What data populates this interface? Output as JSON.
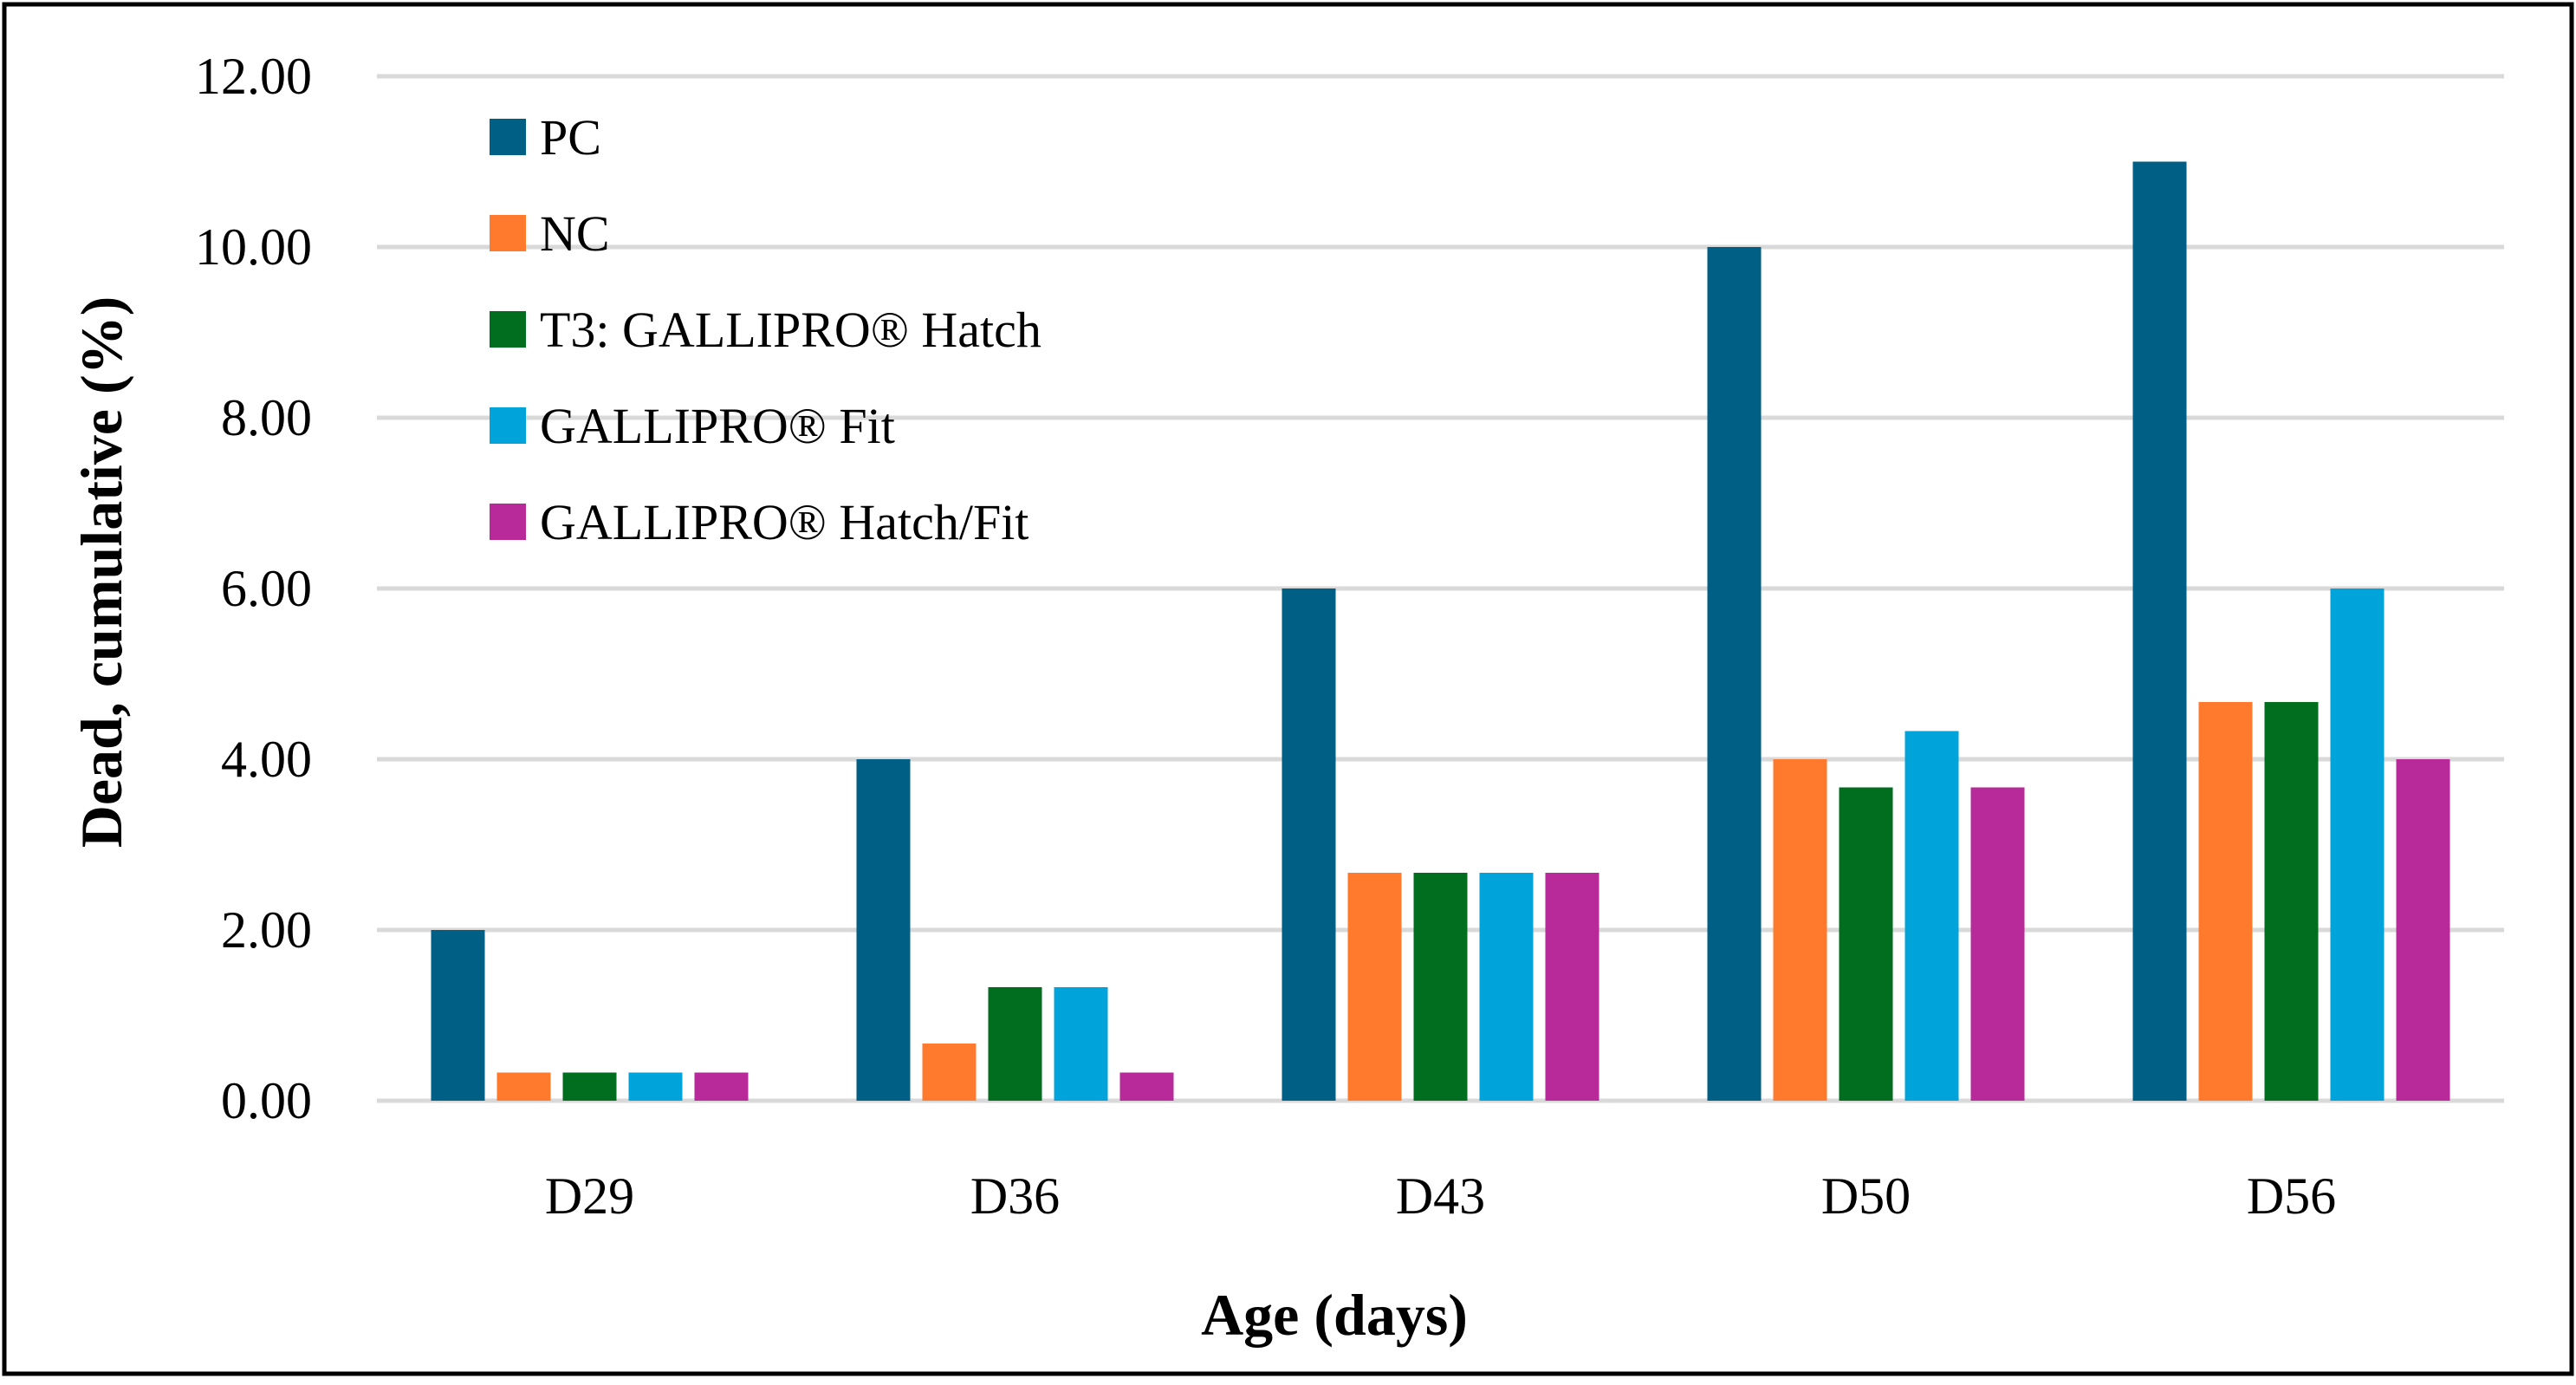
{
  "chart_data": {
    "type": "bar",
    "title": "",
    "xlabel": "Age (days)",
    "ylabel": "Dead, cumulative (%)",
    "ylim": [
      0,
      12
    ],
    "yticks": [
      0,
      2,
      4,
      6,
      8,
      10,
      12
    ],
    "ytick_labels": [
      "0.00",
      "2.00",
      "4.00",
      "6.00",
      "8.00",
      "10.00",
      "12.00"
    ],
    "grid": true,
    "legend_position": "top-left",
    "categories": [
      "D29",
      "D36",
      "D43",
      "D50",
      "D56"
    ],
    "series": [
      {
        "name": "PC",
        "color": "#005F85",
        "values": [
          2.0,
          4.0,
          6.0,
          10.0,
          11.0
        ]
      },
      {
        "name": "NC",
        "color": "#FF7A2D",
        "values": [
          0.33,
          0.67,
          2.67,
          4.0,
          4.67
        ]
      },
      {
        "name": "T3: GALLIPRO® Hatch",
        "color": "#006D1F",
        "values": [
          0.33,
          1.33,
          2.67,
          3.67,
          4.67
        ]
      },
      {
        "name": "GALLIPRO® Fit",
        "color": "#00A3DA",
        "values": [
          0.33,
          1.33,
          2.67,
          4.33,
          6.0
        ]
      },
      {
        "name": "GALLIPRO® Hatch/Fit",
        "color": "#B8299A",
        "values": [
          0.33,
          0.33,
          2.67,
          3.67,
          4.0
        ]
      }
    ]
  }
}
